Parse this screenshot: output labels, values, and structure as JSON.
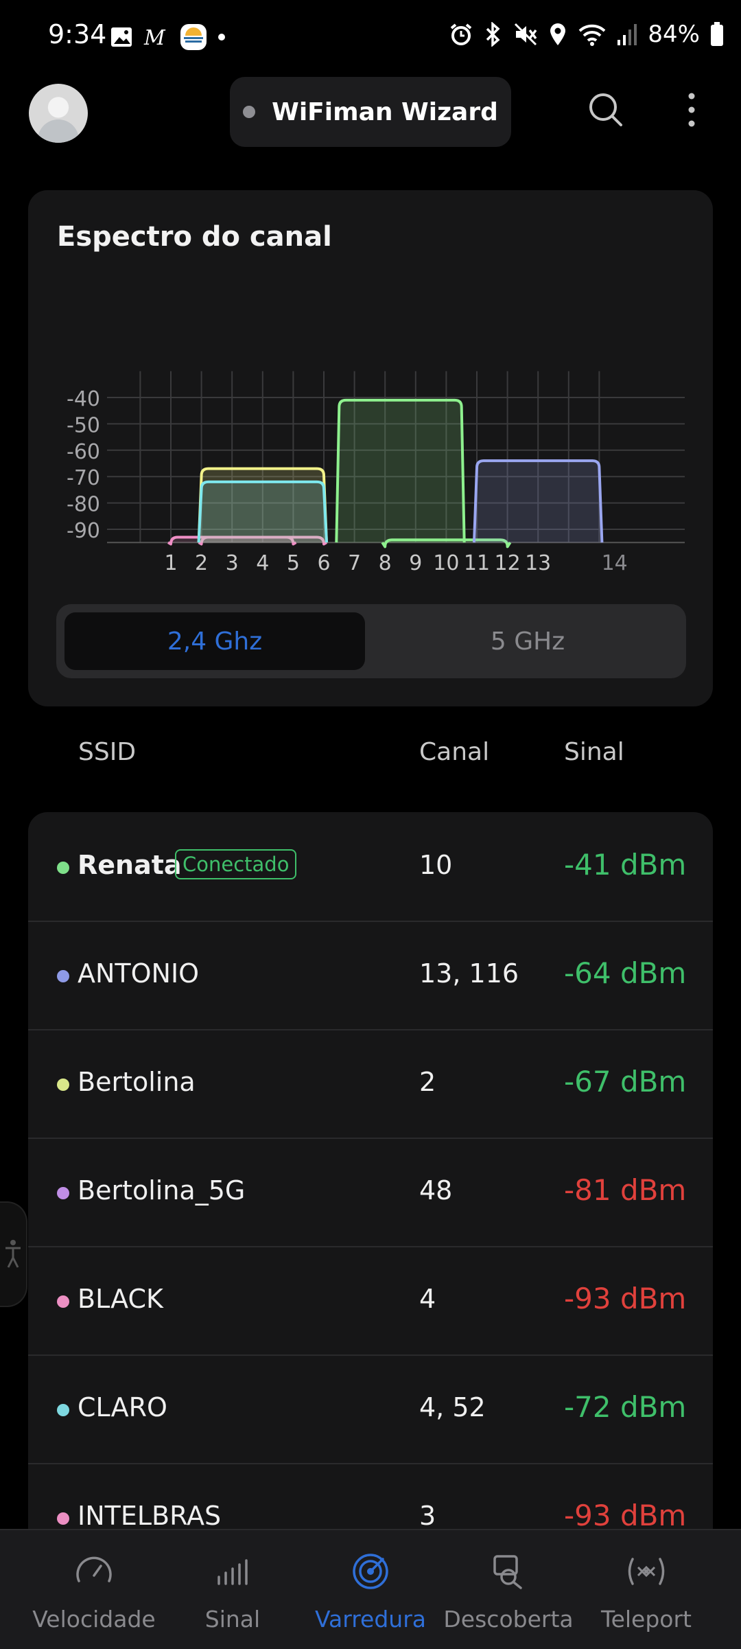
{
  "status_bar": {
    "time": "9:34",
    "battery": "84%",
    "left_icons": [
      "gallery-icon",
      "m-app-icon",
      "app-icon",
      "dot-icon"
    ],
    "right_icons": [
      "alarm-icon",
      "bluetooth-icon",
      "mute-icon",
      "location-icon",
      "wifi-icon",
      "cell-signal-icon",
      "battery-icon"
    ]
  },
  "header": {
    "wizard_label": "WiFiman Wizard",
    "icons": [
      "avatar",
      "search-icon",
      "more-vert-icon"
    ]
  },
  "spectrum": {
    "title": "Espectro do canal",
    "bands": {
      "active": "2,4 Ghz",
      "inactive": "5 GHz"
    }
  },
  "chart_data": {
    "type": "area",
    "title": "Espectro do canal",
    "xlabel": "",
    "ylabel": "",
    "x_ticks": [
      "1",
      "2",
      "3",
      "4",
      "5",
      "6",
      "7",
      "8",
      "9",
      "10",
      "11",
      "12",
      "13",
      "14"
    ],
    "y_ticks": [
      "-40",
      "-50",
      "-60",
      "-70",
      "-80",
      "-90"
    ],
    "ylim": [
      -95,
      -30
    ],
    "grid": true,
    "series": [
      {
        "name": "BLACK",
        "color": "#f08fc6",
        "center_channel": 4,
        "level": -93
      },
      {
        "name": "INTELBRAS",
        "color": "#f08fc6",
        "center_channel": 3,
        "level": -93
      },
      {
        "name": "Bertolina",
        "color": "#f2f28a",
        "center_channel": 4,
        "level": -67
      },
      {
        "name": "CLARO",
        "color": "#7ee8ee",
        "center_channel": 4,
        "level": -72
      },
      {
        "name": "Renata",
        "color": "#8ef08e",
        "center_channel": 8.5,
        "level": -41
      },
      {
        "name": "",
        "color": "#8ef08e",
        "center_channel": 10,
        "level": -94
      },
      {
        "name": "ANTONIO",
        "color": "#9aa6f0",
        "center_channel": 13,
        "level": -64
      }
    ]
  },
  "table": {
    "headers": {
      "ssid": "SSID",
      "channel": "Canal",
      "signal": "Sinal"
    },
    "connected_label": "Conectado",
    "rows": [
      {
        "ssid": "Renata",
        "channel": "10",
        "signal": "-41 dBm",
        "dot": "#7fe08a",
        "status": "good",
        "connected": true
      },
      {
        "ssid": "ANTONIO",
        "channel": "13, 116",
        "signal": "-64 dBm",
        "dot": "#8e9ae6",
        "status": "good",
        "connected": false
      },
      {
        "ssid": "Bertolina",
        "channel": "2",
        "signal": "-67 dBm",
        "dot": "#d9e78a",
        "status": "good",
        "connected": false
      },
      {
        "ssid": "Bertolina_5G",
        "channel": "48",
        "signal": "-81 dBm",
        "dot": "#c08ee6",
        "status": "bad",
        "connected": false
      },
      {
        "ssid": "BLACK",
        "channel": "4",
        "signal": "-93 dBm",
        "dot": "#ec8fc3",
        "status": "bad",
        "connected": false
      },
      {
        "ssid": "CLARO",
        "channel": "4, 52",
        "signal": "-72 dBm",
        "dot": "#7ed8e0",
        "status": "good",
        "connected": false
      },
      {
        "ssid": "INTELBRAS",
        "channel": "3",
        "signal": "-93 dBm",
        "dot": "#ec8fc3",
        "status": "bad",
        "connected": false
      }
    ]
  },
  "nav": {
    "items": [
      {
        "label": "Velocidade",
        "icon": "speedometer-icon"
      },
      {
        "label": "Sinal",
        "icon": "signal-bars-icon"
      },
      {
        "label": "Varredura",
        "icon": "radar-icon",
        "active": true
      },
      {
        "label": "Descoberta",
        "icon": "device-search-icon"
      },
      {
        "label": "Teleport",
        "icon": "teleport-icon"
      }
    ]
  },
  "colors": {
    "accent": "#2f6fd8",
    "good": "#3fbf6a",
    "bad": "#e0413c"
  }
}
